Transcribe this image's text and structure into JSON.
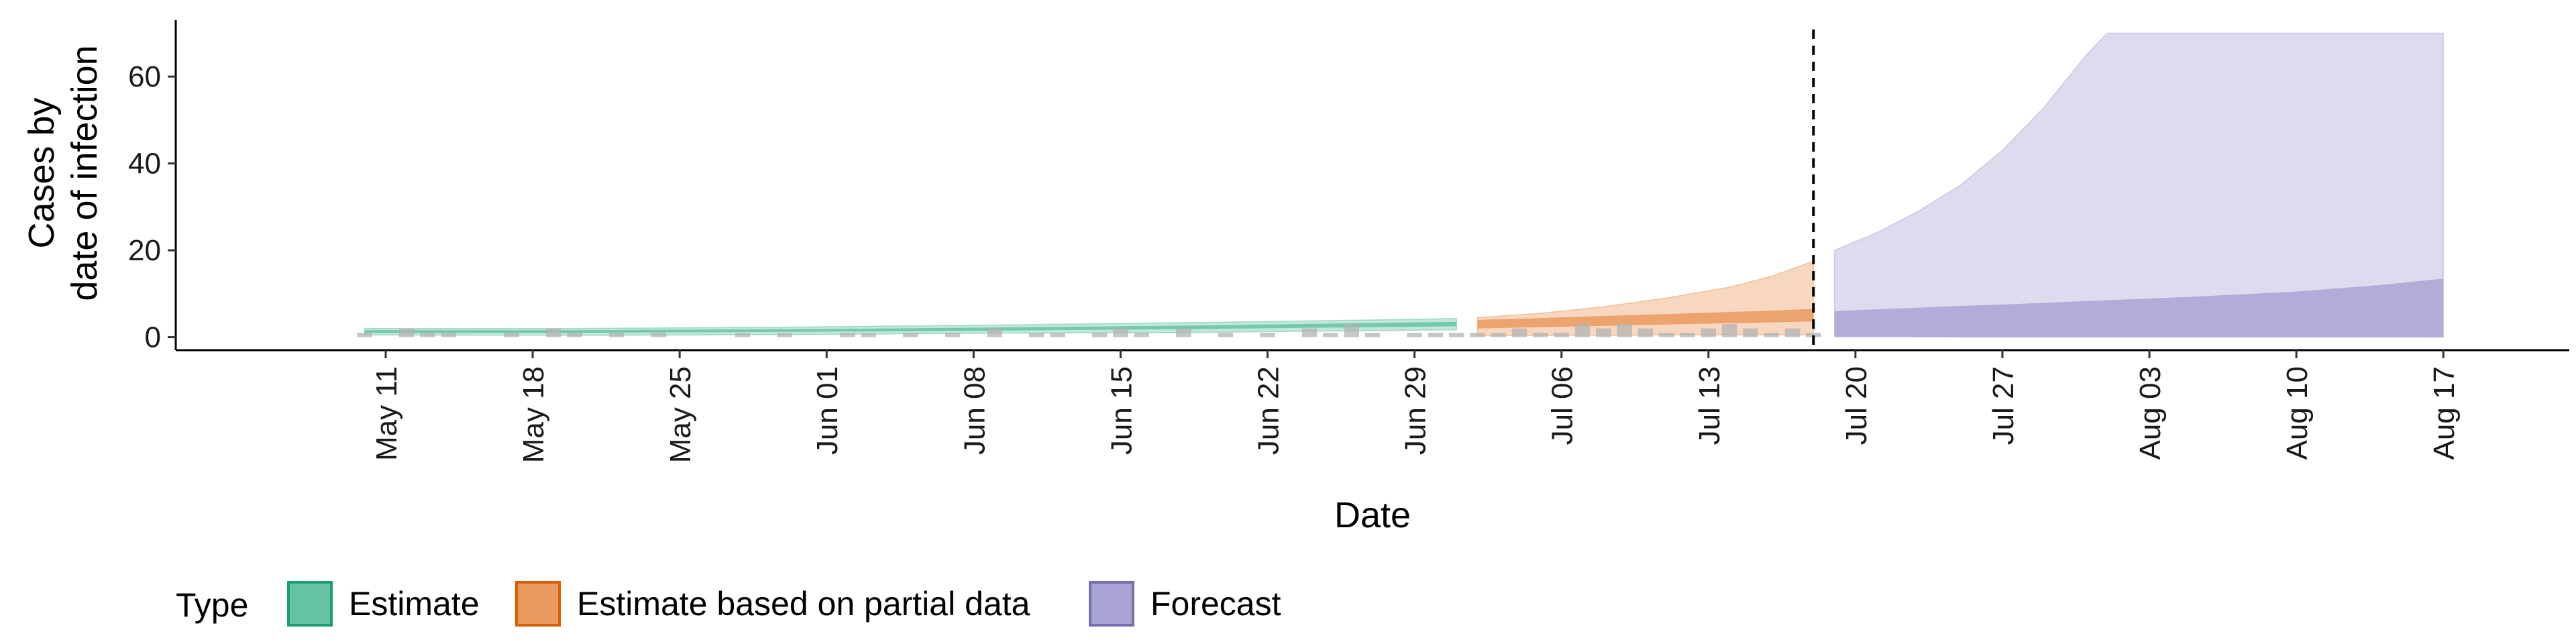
{
  "chart_data": {
    "type": "area",
    "xlabel": "Date",
    "ylabel": [
      "Cases by",
      "date of infection"
    ],
    "ylim": [
      -3,
      73
    ],
    "xlim": [
      "2020-05-01",
      "2020-08-23"
    ],
    "yticks": [
      0,
      20,
      40,
      60
    ],
    "xticks": [
      {
        "date": "2020-05-11",
        "label": "May 11"
      },
      {
        "date": "2020-05-18",
        "label": "May 18"
      },
      {
        "date": "2020-05-25",
        "label": "May 25"
      },
      {
        "date": "2020-06-01",
        "label": "Jun 01"
      },
      {
        "date": "2020-06-08",
        "label": "Jun 08"
      },
      {
        "date": "2020-06-15",
        "label": "Jun 15"
      },
      {
        "date": "2020-06-22",
        "label": "Jun 22"
      },
      {
        "date": "2020-06-29",
        "label": "Jun 29"
      },
      {
        "date": "2020-07-06",
        "label": "Jul 06"
      },
      {
        "date": "2020-07-13",
        "label": "Jul 13"
      },
      {
        "date": "2020-07-20",
        "label": "Jul 20"
      },
      {
        "date": "2020-07-27",
        "label": "Jul 27"
      },
      {
        "date": "2020-08-03",
        "label": "Aug 03"
      },
      {
        "date": "2020-08-10",
        "label": "Aug 10"
      },
      {
        "date": "2020-08-17",
        "label": "Aug 17"
      }
    ],
    "vline_date": "2020-07-18",
    "legend": {
      "title": "Type",
      "position": "bottom",
      "items": [
        {
          "label": "Estimate",
          "fill": "#66c2a5",
          "stroke": "#1b9e77"
        },
        {
          "label": "Estimate based on partial data",
          "fill": "#ea9a5f",
          "stroke": "#d95f02"
        },
        {
          "label": "Forecast",
          "fill": "#a9a4d4",
          "stroke": "#7570b3"
        }
      ]
    },
    "bars": {
      "color": "#b3b3b3",
      "x": [
        "2020-05-10",
        "2020-05-12",
        "2020-05-13",
        "2020-05-14",
        "2020-05-17",
        "2020-05-19",
        "2020-05-20",
        "2020-05-22",
        "2020-05-24",
        "2020-05-28",
        "2020-05-30",
        "2020-06-02",
        "2020-06-03",
        "2020-06-05",
        "2020-06-07",
        "2020-06-09",
        "2020-06-11",
        "2020-06-12",
        "2020-06-14",
        "2020-06-15",
        "2020-06-16",
        "2020-06-18",
        "2020-06-20",
        "2020-06-22",
        "2020-06-24",
        "2020-06-25",
        "2020-06-26",
        "2020-06-27",
        "2020-06-29",
        "2020-06-30",
        "2020-07-01",
        "2020-07-02",
        "2020-07-03",
        "2020-07-04",
        "2020-07-05",
        "2020-07-06",
        "2020-07-07",
        "2020-07-08",
        "2020-07-09",
        "2020-07-10",
        "2020-07-11",
        "2020-07-12",
        "2020-07-13",
        "2020-07-14",
        "2020-07-15",
        "2020-07-16",
        "2020-07-17",
        "2020-07-18"
      ],
      "y": [
        1,
        2,
        1,
        1,
        1,
        2,
        1,
        1,
        1,
        1,
        1,
        1,
        1,
        1,
        1,
        2,
        1,
        1,
        1,
        2,
        1,
        2,
        1,
        1,
        2,
        1,
        3,
        1,
        1,
        1,
        1,
        1,
        1,
        2,
        1,
        1,
        3,
        2,
        3,
        2,
        1,
        1,
        2,
        3,
        2,
        1,
        2,
        1
      ]
    },
    "series": [
      {
        "name": "Estimate",
        "x": [
          "2020-05-10",
          "2020-05-20",
          "2020-05-30",
          "2020-06-09",
          "2020-06-19",
          "2020-06-29",
          "2020-07-01"
        ],
        "band_outer": {
          "lower": [
            0.5,
            0.4,
            0.6,
            0.9,
            1.1,
            1.6,
            1.7
          ],
          "upper": [
            2.0,
            2.0,
            2.3,
            2.8,
            3.4,
            4.1,
            4.3
          ]
        },
        "band_inner": {
          "lower": [
            1.0,
            1.0,
            1.2,
            1.5,
            1.9,
            2.4,
            2.5
          ],
          "upper": [
            1.6,
            1.6,
            1.8,
            2.2,
            2.7,
            3.4,
            3.5
          ]
        }
      },
      {
        "name": "Estimate based on partial data",
        "x": [
          "2020-07-02",
          "2020-07-05",
          "2020-07-08",
          "2020-07-11",
          "2020-07-14",
          "2020-07-16",
          "2020-07-18"
        ],
        "band_outer": {
          "lower": [
            0.3,
            0.4,
            0.4,
            0.5,
            0.5,
            0.5,
            0.5
          ],
          "upper": [
            4.5,
            5.5,
            7.0,
            9.0,
            11.5,
            14.0,
            17.5
          ]
        },
        "band_inner": {
          "lower": [
            2.0,
            2.3,
            2.6,
            2.9,
            3.2,
            3.4,
            3.6
          ],
          "upper": [
            4.0,
            4.4,
            4.9,
            5.3,
            5.8,
            6.1,
            6.5
          ]
        }
      },
      {
        "name": "Forecast",
        "x": [
          "2020-07-19",
          "2020-07-21",
          "2020-07-23",
          "2020-07-25",
          "2020-07-27",
          "2020-07-29",
          "2020-07-31",
          "2020-08-01",
          "2020-08-05",
          "2020-08-10",
          "2020-08-14",
          "2020-08-17"
        ],
        "band_outer": {
          "lower": [
            0.5,
            0.4,
            0.2,
            0,
            0,
            0,
            0,
            0,
            0,
            0,
            0,
            0
          ],
          "upper": [
            20,
            24,
            29,
            35,
            43,
            53,
            65,
            70,
            70,
            70,
            70,
            70
          ]
        },
        "band_inner": {
          "lower": [
            0,
            0,
            0,
            0,
            0,
            0,
            0,
            0,
            0,
            0,
            0,
            0
          ],
          "upper": [
            6.0,
            6.4,
            6.8,
            7.2,
            7.5,
            7.9,
            8.3,
            8.5,
            9.3,
            10.5,
            12.0,
            13.5
          ]
        }
      }
    ]
  }
}
